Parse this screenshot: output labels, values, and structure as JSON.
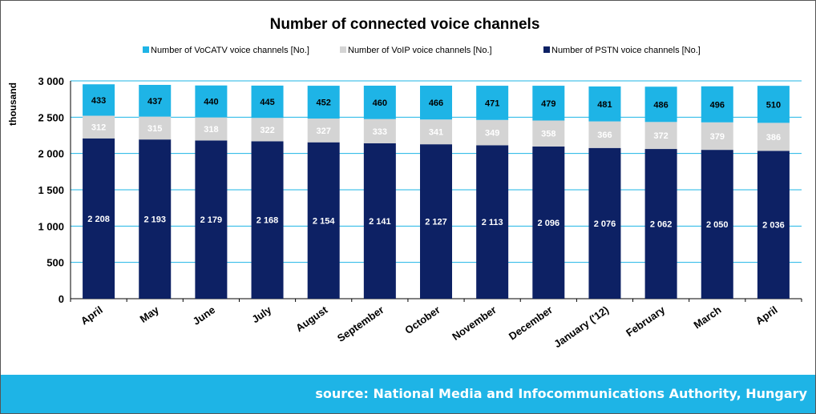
{
  "chart_data": {
    "type": "bar",
    "stacked": true,
    "title": "Number of connected voice channels",
    "ylabel": "thousand",
    "ylim": [
      0,
      3000
    ],
    "yticks": [
      0,
      500,
      1000,
      1500,
      2000,
      2500,
      3000
    ],
    "ytick_labels": [
      "0",
      "500",
      "1 000",
      "1 500",
      "2 000",
      "2 500",
      "3 000"
    ],
    "grid": true,
    "legend_position": "top",
    "categories": [
      "April",
      "May",
      "June",
      "July",
      "August",
      "September",
      "October",
      "November",
      "December",
      "January ('12)",
      "February",
      "March",
      "April"
    ],
    "series": [
      {
        "name": "Number of PSTN voice channels [No.]",
        "color": "#0d2164",
        "label_color": "#ffffff",
        "values": [
          2208,
          2193,
          2179,
          2168,
          2154,
          2141,
          2127,
          2113,
          2096,
          2076,
          2062,
          2050,
          2036
        ],
        "labels": [
          "2 208",
          "2 193",
          "2 179",
          "2 168",
          "2 154",
          "2 141",
          "2 127",
          "2 113",
          "2 096",
          "2 076",
          "2 062",
          "2 050",
          "2 036"
        ]
      },
      {
        "name": "Number of VoIP voice channels [No.]",
        "color": "#d4d4d4",
        "label_color": "#ffffff",
        "values": [
          312,
          315,
          318,
          322,
          327,
          333,
          341,
          349,
          358,
          366,
          372,
          379,
          386
        ],
        "labels": [
          "312",
          "315",
          "318",
          "322",
          "327",
          "333",
          "341",
          "349",
          "358",
          "366",
          "372",
          "379",
          "386"
        ]
      },
      {
        "name": "Number of VoCATV voice channels [No.]",
        "color": "#1eb4e6",
        "label_color": "#000000",
        "values": [
          433,
          437,
          440,
          445,
          452,
          460,
          466,
          471,
          479,
          481,
          486,
          496,
          510
        ],
        "labels": [
          "433",
          "437",
          "440",
          "445",
          "452",
          "460",
          "466",
          "471",
          "479",
          "481",
          "486",
          "496",
          "510"
        ]
      }
    ],
    "legend_order": [
      2,
      1,
      0
    ]
  },
  "footer": {
    "source_text": "source: National Media and Infocommunications Authority, Hungary"
  }
}
